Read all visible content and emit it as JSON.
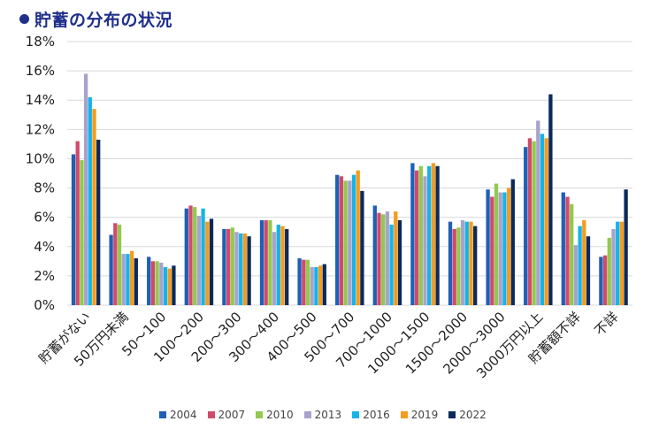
{
  "title": "貯蓄の分布の状況",
  "colors": {
    "title_dot": "#1f2f8a",
    "title_text": "#1f2f8a"
  },
  "chart_data": {
    "type": "bar",
    "title": "貯蓄の分布の状況",
    "xlabel": "",
    "ylabel": "",
    "ylim": [
      0,
      18
    ],
    "y_ticks": [
      "0%",
      "2%",
      "4%",
      "6%",
      "8%",
      "10%",
      "12%",
      "14%",
      "16%",
      "18%"
    ],
    "y_tick_values": [
      0,
      2,
      4,
      6,
      8,
      10,
      12,
      14,
      16,
      18
    ],
    "grid": true,
    "legend_position": "bottom",
    "categories": [
      "貯蓄がない",
      "50万円未満",
      "50～100",
      "100～200",
      "200～300",
      "300～400",
      "400～500",
      "500～700",
      "700～1000",
      "1000～1500",
      "1500～2000",
      "2000～3000",
      "3000万円以上",
      "貯蓄額不詳",
      "不詳"
    ],
    "series": [
      {
        "name": "2004",
        "color": "#1f5fb8",
        "values": [
          10.3,
          4.8,
          3.3,
          6.6,
          5.2,
          5.8,
          3.2,
          8.9,
          6.8,
          9.7,
          5.7,
          7.9,
          10.8,
          7.7,
          3.3
        ]
      },
      {
        "name": "2007",
        "color": "#d14a6b",
        "values": [
          11.2,
          5.6,
          3.0,
          6.8,
          5.2,
          5.8,
          3.1,
          8.8,
          6.3,
          9.2,
          5.2,
          7.4,
          11.4,
          7.4,
          3.4
        ]
      },
      {
        "name": "2010",
        "color": "#92c94e",
        "values": [
          9.9,
          5.5,
          3.0,
          6.7,
          5.3,
          5.8,
          3.1,
          8.5,
          6.2,
          9.5,
          5.3,
          8.3,
          11.2,
          6.9,
          4.6
        ]
      },
      {
        "name": "2013",
        "color": "#a8a3cc",
        "values": [
          15.8,
          3.5,
          2.9,
          6.1,
          5.0,
          5.0,
          2.6,
          8.5,
          6.4,
          8.8,
          5.8,
          7.7,
          12.6,
          4.1,
          5.2
        ]
      },
      {
        "name": "2016",
        "color": "#15b4e8",
        "values": [
          14.2,
          3.5,
          2.6,
          6.6,
          4.9,
          5.5,
          2.6,
          8.9,
          5.5,
          9.5,
          5.7,
          7.7,
          11.7,
          5.4,
          5.7
        ]
      },
      {
        "name": "2019",
        "color": "#f59b1d",
        "values": [
          13.4,
          3.7,
          2.5,
          5.7,
          4.9,
          5.4,
          2.7,
          9.2,
          6.4,
          9.7,
          5.7,
          8.0,
          11.4,
          5.8,
          5.7
        ]
      },
      {
        "name": "2022",
        "color": "#0b2a5b",
        "values": [
          11.3,
          3.2,
          2.7,
          5.9,
          4.7,
          5.2,
          2.8,
          7.8,
          5.8,
          9.5,
          5.4,
          8.6,
          14.4,
          4.7,
          7.9
        ]
      }
    ]
  }
}
